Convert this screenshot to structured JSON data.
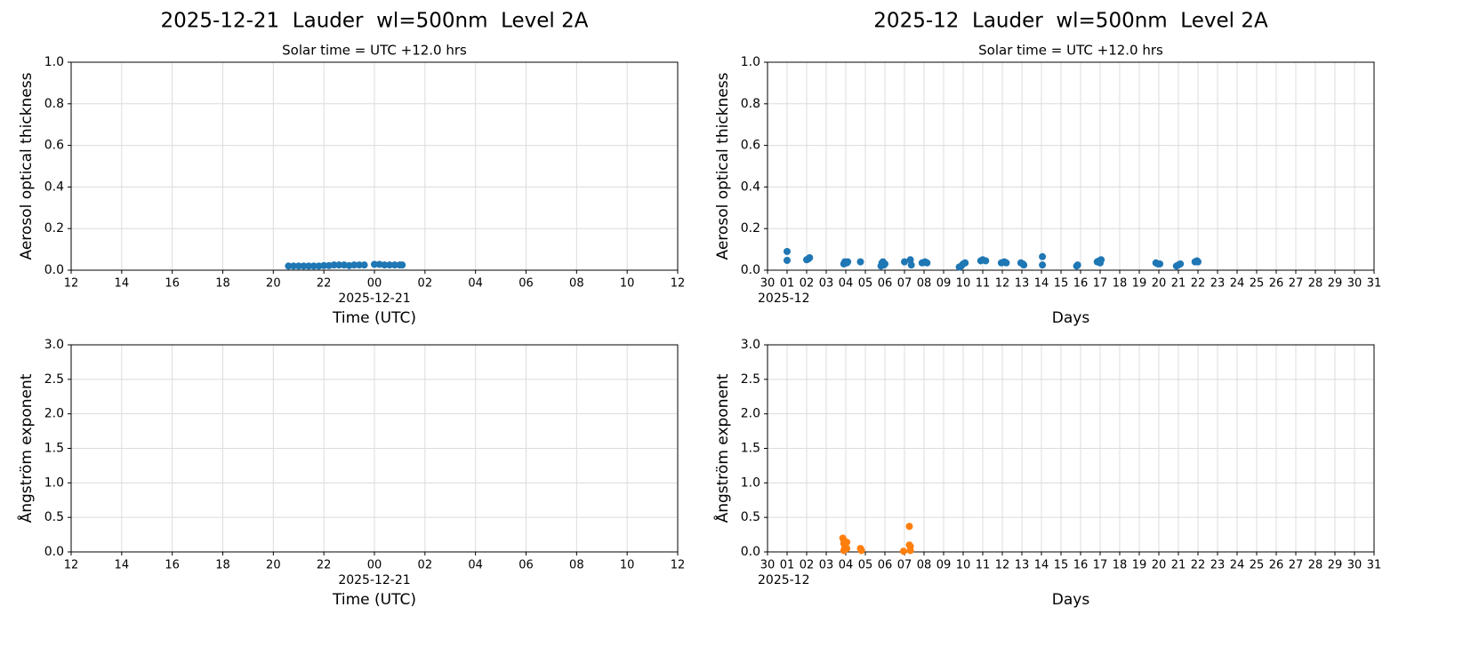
{
  "chart_data": [
    {
      "type": "scatter",
      "title": "2025-12-21  Lauder  wl=500nm  Level 2A",
      "subtitle": "Solar time = UTC +12.0 hrs",
      "xlabel": "Time (UTC)",
      "x_offset_label": "2025-12-21",
      "ylabel": "Aerosol optical thickness",
      "color": "#1f77b4",
      "x": [
        20.6,
        20.8,
        21.0,
        21.2,
        21.4,
        21.6,
        21.8,
        22.0,
        22.2,
        22.4,
        22.6,
        22.8,
        23.0,
        23.2,
        23.4,
        23.6,
        24.0,
        24.2,
        24.4,
        24.6,
        24.8,
        25.0,
        25.1
      ],
      "values": [
        0.02,
        0.02,
        0.02,
        0.02,
        0.02,
        0.02,
        0.02,
        0.022,
        0.022,
        0.025,
        0.025,
        0.025,
        0.022,
        0.025,
        0.025,
        0.025,
        0.028,
        0.028,
        0.025,
        0.025,
        0.025,
        0.025,
        0.025
      ],
      "xlim": [
        12,
        36
      ],
      "xticks": [
        {
          "value": 12,
          "label": "12"
        },
        {
          "value": 14,
          "label": "14"
        },
        {
          "value": 16,
          "label": "16"
        },
        {
          "value": 18,
          "label": "18"
        },
        {
          "value": 20,
          "label": "20"
        },
        {
          "value": 22,
          "label": "22"
        },
        {
          "value": 24,
          "label": "00"
        },
        {
          "value": 26,
          "label": "02"
        },
        {
          "value": 28,
          "label": "04"
        },
        {
          "value": 30,
          "label": "06"
        },
        {
          "value": 32,
          "label": "08"
        },
        {
          "value": 34,
          "label": "10"
        },
        {
          "value": 36,
          "label": "12"
        }
      ],
      "ylim": [
        0,
        1
      ],
      "yticks": [
        {
          "value": 0,
          "label": "0.0"
        },
        0.2,
        0.4,
        0.6,
        0.8,
        {
          "value": 1,
          "label": "1.0"
        }
      ],
      "grid": true
    },
    {
      "type": "scatter",
      "title": "2025-12  Lauder  wl=500nm  Level 2A",
      "subtitle": "Solar time = UTC +12.0 hrs",
      "xlabel": "Days",
      "x_offset_label": "2025-12",
      "ylabel": "Aerosol optical thickness",
      "color": "#1f77b4",
      "x": [
        1.0,
        1.0,
        2.0,
        2.1,
        2.15,
        3.9,
        3.95,
        4.05,
        4.1,
        4.75,
        5.8,
        5.85,
        5.9,
        5.95,
        6.0,
        7.0,
        7.3,
        7.35,
        7.9,
        8.05,
        8.15,
        9.8,
        9.9,
        10.0,
        10.1,
        10.9,
        11.0,
        11.15,
        11.95,
        12.1,
        12.2,
        12.95,
        13.05,
        13.1,
        14.05,
        14.05,
        15.8,
        15.85,
        16.85,
        16.95,
        17.0,
        17.05,
        19.85,
        19.95,
        20.05,
        20.9,
        21.0,
        21.1,
        21.85,
        21.95,
        22.0
      ],
      "values": [
        0.09,
        0.047,
        0.05,
        0.055,
        0.06,
        0.03,
        0.04,
        0.035,
        0.04,
        0.04,
        0.02,
        0.035,
        0.04,
        0.025,
        0.03,
        0.04,
        0.05,
        0.025,
        0.035,
        0.04,
        0.035,
        0.015,
        0.02,
        0.03,
        0.035,
        0.045,
        0.05,
        0.045,
        0.035,
        0.04,
        0.035,
        0.035,
        0.03,
        0.025,
        0.065,
        0.025,
        0.02,
        0.025,
        0.04,
        0.045,
        0.035,
        0.05,
        0.035,
        0.03,
        0.03,
        0.02,
        0.025,
        0.03,
        0.04,
        0.045,
        0.04
      ],
      "xlim": [
        0,
        31
      ],
      "xticks": [
        {
          "value": 0,
          "label": "30"
        },
        {
          "value": 1,
          "label": "01"
        },
        {
          "value": 2,
          "label": "02"
        },
        {
          "value": 3,
          "label": "03"
        },
        {
          "value": 4,
          "label": "04"
        },
        {
          "value": 5,
          "label": "05"
        },
        {
          "value": 6,
          "label": "06"
        },
        {
          "value": 7,
          "label": "07"
        },
        {
          "value": 8,
          "label": "08"
        },
        {
          "value": 9,
          "label": "09"
        },
        10,
        11,
        12,
        13,
        14,
        15,
        16,
        17,
        18,
        19,
        20,
        21,
        22,
        23,
        24,
        25,
        26,
        27,
        28,
        29,
        30,
        31
      ],
      "ylim": [
        0,
        1
      ],
      "yticks": [
        {
          "value": 0,
          "label": "0.0"
        },
        0.2,
        0.4,
        0.6,
        0.8,
        {
          "value": 1,
          "label": "1.0"
        }
      ],
      "grid": true
    },
    {
      "type": "scatter",
      "xlabel": "Time (UTC)",
      "x_offset_label": "2025-12-21",
      "ylabel": "Ångström exponent",
      "color": "#ff7f0e",
      "x": [],
      "values": [],
      "xlim": [
        12,
        36
      ],
      "xticks": [
        {
          "value": 12,
          "label": "12"
        },
        {
          "value": 14,
          "label": "14"
        },
        {
          "value": 16,
          "label": "16"
        },
        {
          "value": 18,
          "label": "18"
        },
        {
          "value": 20,
          "label": "20"
        },
        {
          "value": 22,
          "label": "22"
        },
        {
          "value": 24,
          "label": "00"
        },
        {
          "value": 26,
          "label": "02"
        },
        {
          "value": 28,
          "label": "04"
        },
        {
          "value": 30,
          "label": "06"
        },
        {
          "value": 32,
          "label": "08"
        },
        {
          "value": 34,
          "label": "10"
        },
        {
          "value": 36,
          "label": "12"
        }
      ],
      "ylim": [
        0,
        3
      ],
      "yticks": [
        {
          "value": 0,
          "label": "0.0"
        },
        0.5,
        {
          "value": 1,
          "label": "1.0"
        },
        1.5,
        {
          "value": 2,
          "label": "2.0"
        },
        2.5,
        {
          "value": 3,
          "label": "3.0"
        }
      ],
      "grid": true
    },
    {
      "type": "scatter",
      "xlabel": "Days",
      "x_offset_label": "2025-12",
      "ylabel": "Ångström exponent",
      "color": "#ff7f0e",
      "x": [
        3.85,
        3.9,
        3.9,
        3.95,
        3.9,
        4.05,
        4.05,
        4.75,
        4.8,
        6.95,
        7.25,
        7.25,
        7.3,
        7.3
      ],
      "values": [
        0.2,
        0.17,
        0.12,
        0.06,
        0.02,
        0.14,
        0.05,
        0.05,
        0.02,
        0.01,
        0.37,
        0.1,
        0.08,
        0.02
      ],
      "xlim": [
        0,
        31
      ],
      "xticks": [
        {
          "value": 0,
          "label": "30"
        },
        {
          "value": 1,
          "label": "01"
        },
        {
          "value": 2,
          "label": "02"
        },
        {
          "value": 3,
          "label": "03"
        },
        {
          "value": 4,
          "label": "04"
        },
        {
          "value": 5,
          "label": "05"
        },
        {
          "value": 6,
          "label": "06"
        },
        {
          "value": 7,
          "label": "07"
        },
        {
          "value": 8,
          "label": "08"
        },
        {
          "value": 9,
          "label": "09"
        },
        10,
        11,
        12,
        13,
        14,
        15,
        16,
        17,
        18,
        19,
        20,
        21,
        22,
        23,
        24,
        25,
        26,
        27,
        28,
        29,
        30,
        31
      ],
      "ylim": [
        0,
        3
      ],
      "yticks": [
        {
          "value": 0,
          "label": "0.0"
        },
        0.5,
        {
          "value": 1,
          "label": "1.0"
        },
        1.5,
        {
          "value": 2,
          "label": "2.0"
        },
        2.5,
        {
          "value": 3,
          "label": "3.0"
        }
      ],
      "grid": true
    }
  ]
}
